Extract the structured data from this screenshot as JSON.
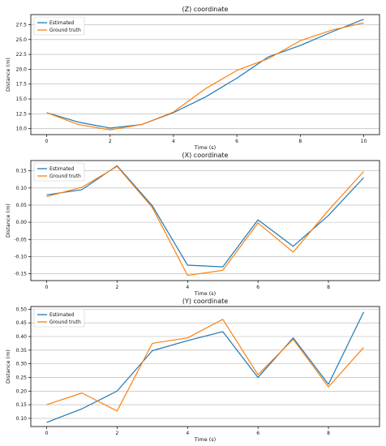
{
  "colors": {
    "estimated": "#1f77b4",
    "ground_truth": "#ff7f0e",
    "grid": "#b0b0b0"
  },
  "chart_data": [
    {
      "type": "line",
      "title": "(Z) coordinate",
      "xlabel": "Time (s)",
      "ylabel": "Distance (m)",
      "xlim": [
        -0.5,
        10.5
      ],
      "ylim": [
        9.0,
        29.2
      ],
      "xticks": [
        0,
        2,
        4,
        6,
        8,
        10
      ],
      "xtick_labels": [
        "0",
        "2",
        "4",
        "6",
        "8",
        "10"
      ],
      "yticks": [
        10.0,
        12.5,
        15.0,
        17.5,
        20.0,
        22.5,
        25.0,
        27.5
      ],
      "ytick_labels": [
        "10.0",
        "12.5",
        "15.0",
        "17.5",
        "20.0",
        "22.5",
        "25.0",
        "27.5"
      ],
      "grid": true,
      "legend_position": "top-left",
      "x": [
        0,
        1,
        2,
        3,
        4,
        5,
        6,
        7,
        8,
        9,
        10
      ],
      "series": [
        {
          "name": "Estimated",
          "color": "#1f77b4",
          "values": [
            12.7,
            11.1,
            10.1,
            10.7,
            12.7,
            15.3,
            18.5,
            22.1,
            24.0,
            26.3,
            28.4
          ]
        },
        {
          "name": "Ground truth",
          "color": "#ff7f0e",
          "values": [
            12.7,
            10.7,
            9.8,
            10.7,
            12.8,
            16.7,
            19.8,
            21.8,
            24.8,
            26.6,
            27.8
          ]
        }
      ]
    },
    {
      "type": "line",
      "title": "(X) coordinate",
      "xlabel": "Time (s)",
      "ylabel": "Distance (m)",
      "xlim": [
        -0.45,
        9.45
      ],
      "ylim": [
        -0.17,
        0.18
      ],
      "xticks": [
        0,
        2,
        4,
        6,
        8
      ],
      "xtick_labels": [
        "0",
        "2",
        "4",
        "6",
        "8"
      ],
      "yticks": [
        -0.15,
        -0.1,
        -0.05,
        0.0,
        0.05,
        0.1,
        0.15
      ],
      "ytick_labels": [
        "-0.15",
        "-0.10",
        "-0.05",
        "0.00",
        "0.05",
        "0.10",
        "0.15"
      ],
      "grid": true,
      "legend_position": "top-left",
      "x": [
        0,
        1,
        2,
        3,
        4,
        5,
        6,
        7,
        8,
        9
      ],
      "series": [
        {
          "name": "Estimated",
          "color": "#1f77b4",
          "values": [
            0.08,
            0.095,
            0.165,
            0.048,
            -0.125,
            -0.13,
            0.007,
            -0.07,
            0.02,
            0.13
          ]
        },
        {
          "name": "Ground truth",
          "color": "#ff7f0e",
          "values": [
            0.075,
            0.102,
            0.163,
            0.043,
            -0.155,
            -0.14,
            -0.002,
            -0.087,
            0.035,
            0.148
          ]
        }
      ]
    },
    {
      "type": "line",
      "title": "(Y) coordinate",
      "xlabel": "Time (s)",
      "ylabel": "Distance (m)",
      "xlim": [
        -0.45,
        9.45
      ],
      "ylim": [
        0.07,
        0.51
      ],
      "xticks": [
        0,
        2,
        4,
        6,
        8
      ],
      "xtick_labels": [
        "0",
        "2",
        "4",
        "6",
        "8"
      ],
      "yticks": [
        0.1,
        0.15,
        0.2,
        0.25,
        0.3,
        0.35,
        0.4,
        0.45,
        0.5
      ],
      "ytick_labels": [
        "0.10",
        "0.15",
        "0.20",
        "0.25",
        "0.30",
        "0.35",
        "0.40",
        "0.45",
        "0.50"
      ],
      "grid": true,
      "legend_position": "top-left",
      "x": [
        0,
        1,
        2,
        3,
        4,
        5,
        6,
        7,
        8,
        9
      ],
      "series": [
        {
          "name": "Estimated",
          "color": "#1f77b4",
          "values": [
            0.085,
            0.135,
            0.2,
            0.348,
            0.385,
            0.418,
            0.25,
            0.395,
            0.225,
            0.49
          ]
        },
        {
          "name": "Ground truth",
          "color": "#ff7f0e",
          "values": [
            0.15,
            0.193,
            0.127,
            0.375,
            0.395,
            0.463,
            0.26,
            0.39,
            0.215,
            0.36
          ]
        }
      ]
    }
  ]
}
